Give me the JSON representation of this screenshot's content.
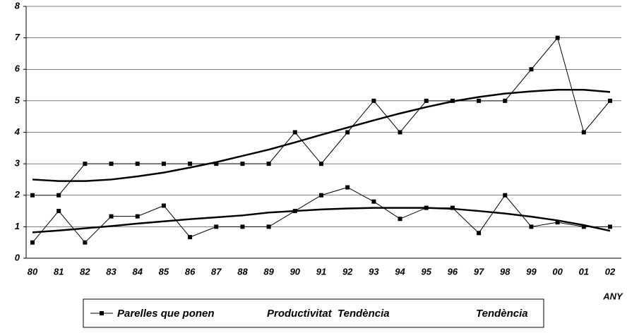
{
  "chart_data": {
    "type": "line",
    "xlabel": "ANY",
    "categories": [
      "80",
      "81",
      "82",
      "83",
      "84",
      "85",
      "86",
      "87",
      "88",
      "89",
      "90",
      "91",
      "92",
      "93",
      "94",
      "95",
      "96",
      "97",
      "98",
      "99",
      "00",
      "01",
      "02"
    ],
    "series": [
      {
        "name": "Parelles que ponen",
        "color": "#000000",
        "width": 1,
        "markers": true,
        "values": [
          2,
          2,
          3,
          3,
          3,
          3,
          3,
          3,
          3,
          3,
          4,
          3,
          4,
          5,
          4,
          5,
          5,
          5,
          5,
          6,
          7,
          4,
          5
        ]
      },
      {
        "name": "Productivitat",
        "color": "#000000",
        "width": 1,
        "markers": true,
        "values": [
          0.5,
          1.5,
          0.5,
          1.33,
          1.33,
          1.67,
          0.67,
          1,
          1,
          1,
          1.5,
          2,
          2.25,
          1.8,
          1.25,
          1.6,
          1.6,
          0.8,
          2,
          1,
          1.14,
          1,
          1
        ]
      },
      {
        "name": "Tendència",
        "color": "#000000",
        "width": 2.5,
        "markers": false,
        "values": [
          2.5,
          2.45,
          2.45,
          2.5,
          2.6,
          2.72,
          2.88,
          3.05,
          3.25,
          3.45,
          3.68,
          3.92,
          4.15,
          4.38,
          4.6,
          4.8,
          4.98,
          5.12,
          5.23,
          5.3,
          5.35,
          5.35,
          5.28
        ]
      },
      {
        "name": "Tendència",
        "color": "#000000",
        "width": 2.5,
        "markers": false,
        "values": [
          0.82,
          0.88,
          0.95,
          1.02,
          1.1,
          1.17,
          1.24,
          1.3,
          1.36,
          1.45,
          1.5,
          1.55,
          1.58,
          1.6,
          1.6,
          1.6,
          1.57,
          1.5,
          1.42,
          1.32,
          1.2,
          1.05,
          0.87
        ]
      }
    ],
    "ylim": [
      0,
      8
    ],
    "yticks": [
      0,
      1,
      2,
      3,
      4,
      5,
      6,
      7,
      8
    ],
    "grid": true
  }
}
